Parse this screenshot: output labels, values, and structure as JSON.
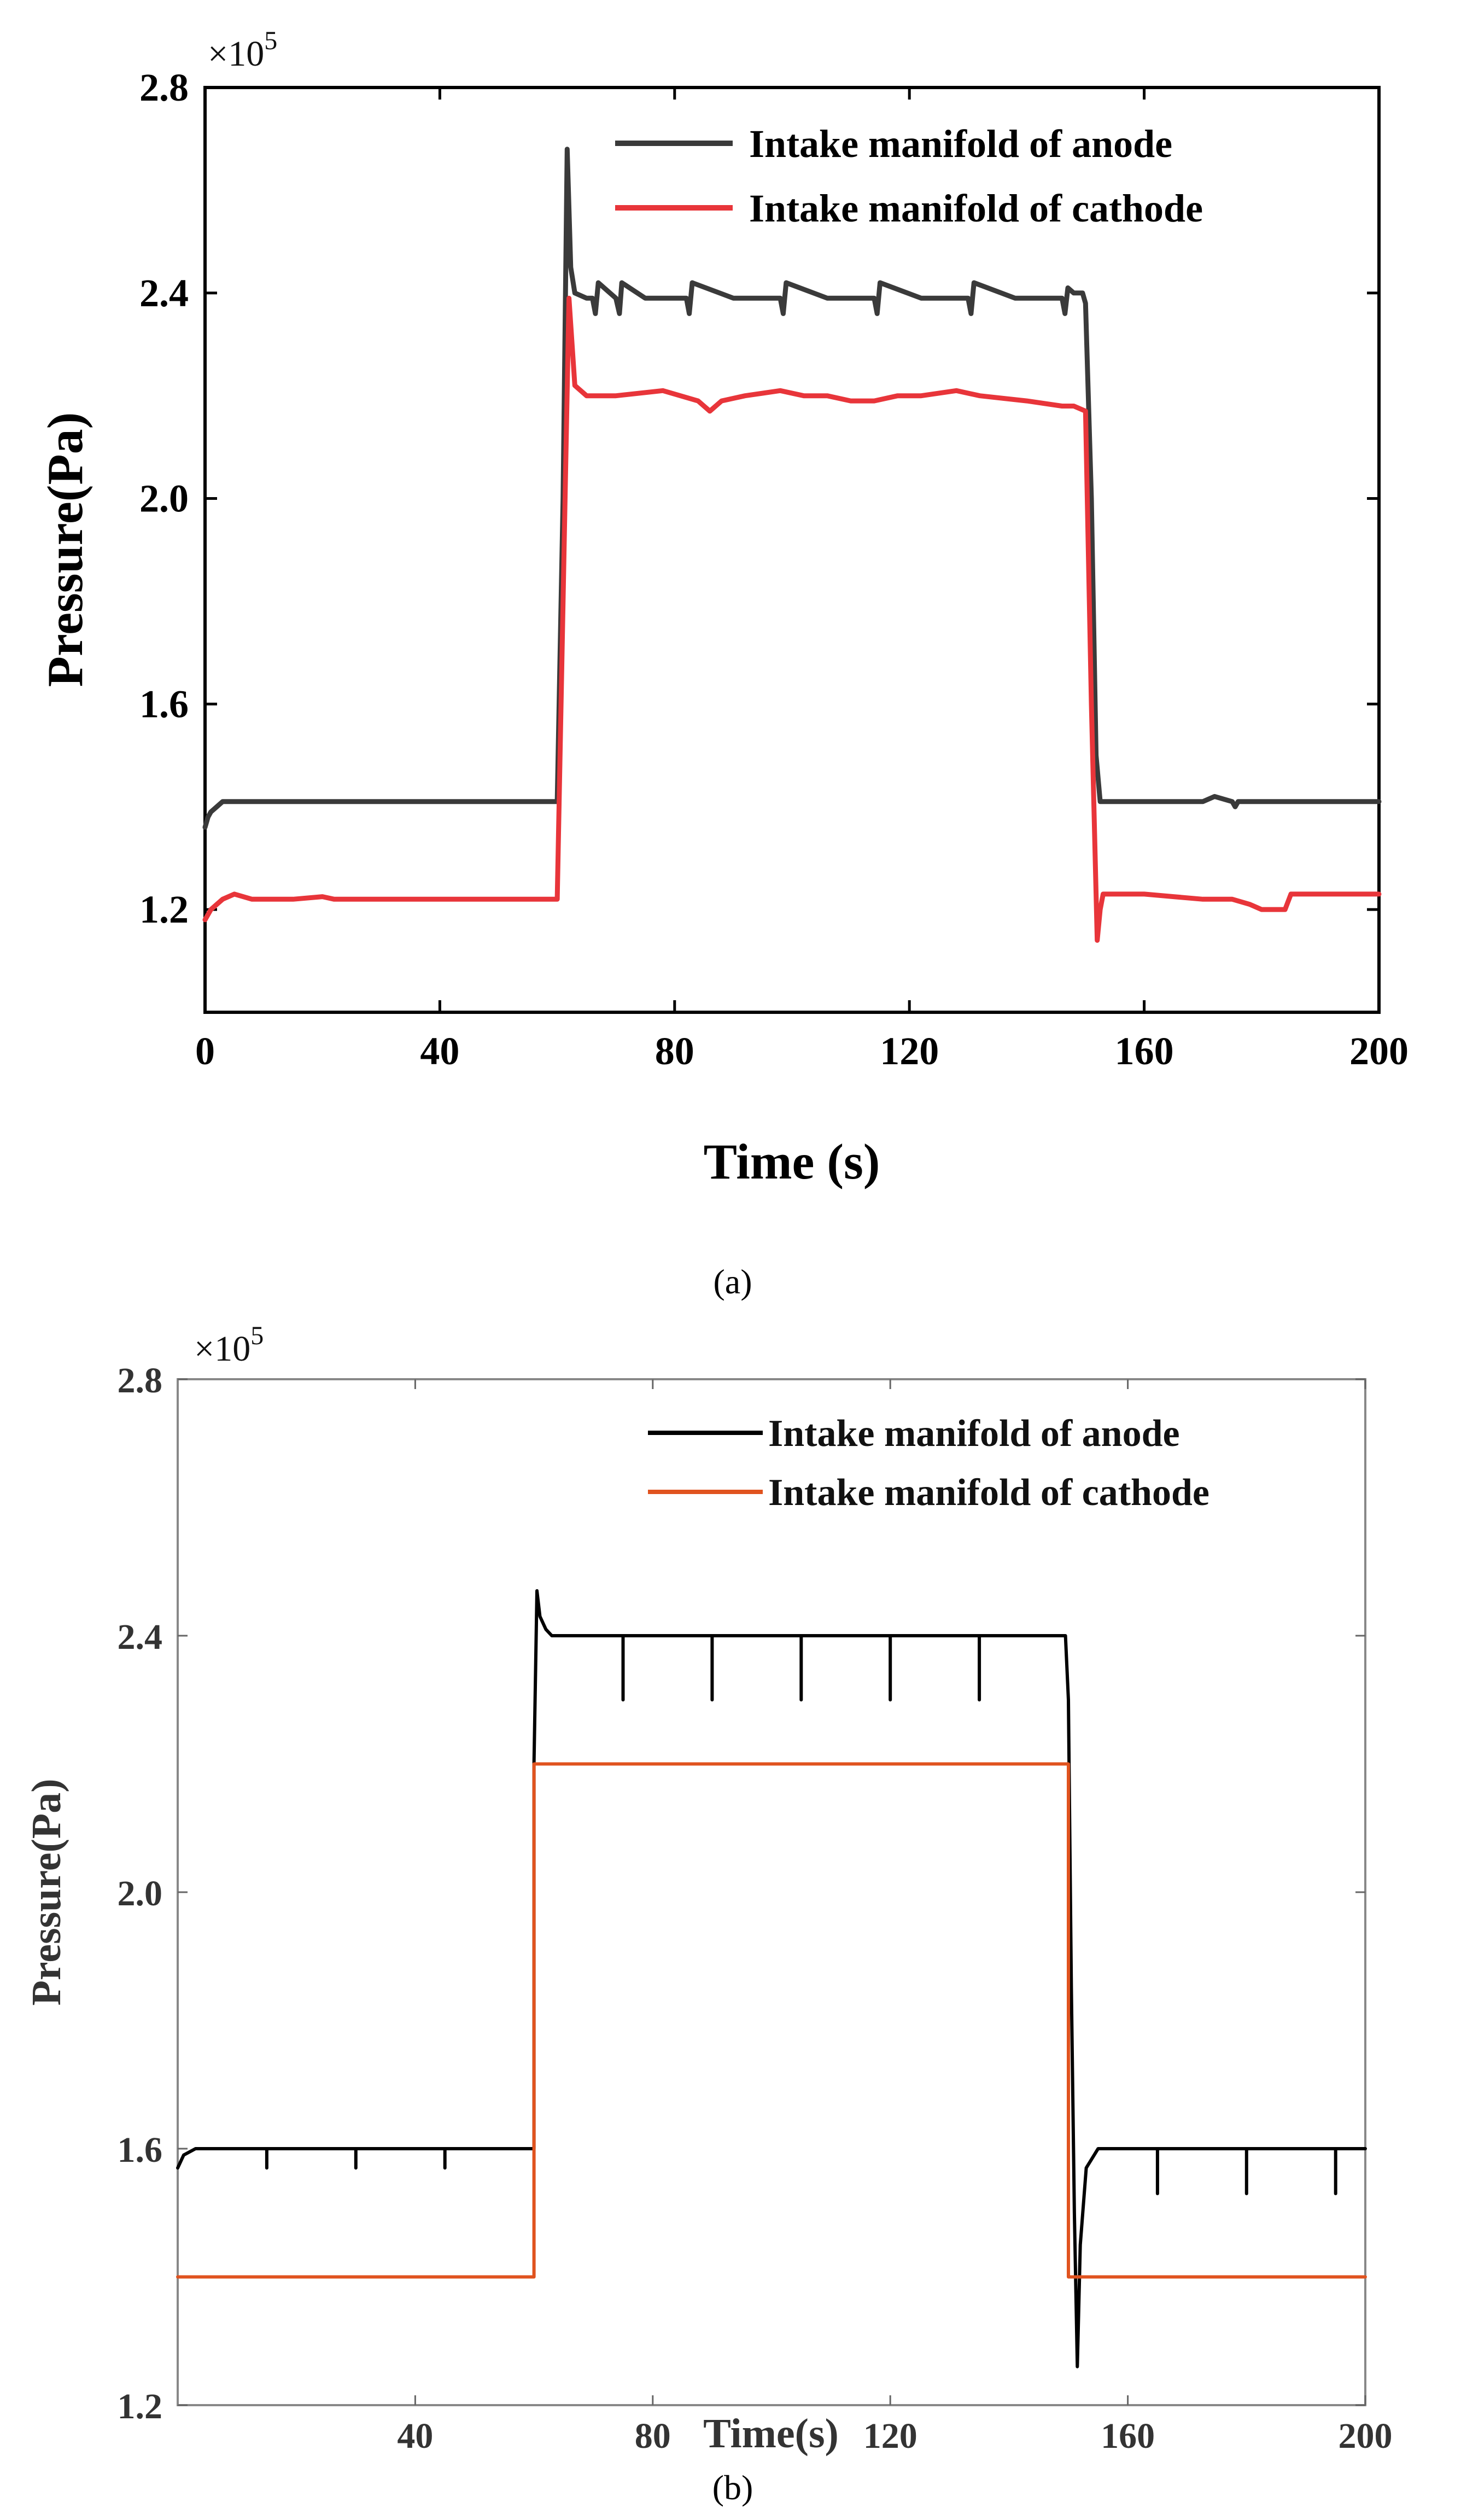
{
  "chart_data": [
    {
      "type": "line",
      "panel": "a",
      "caption": "(a)",
      "xlabel": "Time (s)",
      "ylabel": "Pressure(Pa)",
      "y_multiplier": "×10",
      "y_multiplier_exp": "5",
      "xlim": [
        0,
        200
      ],
      "ylim": [
        1.0,
        2.8
      ],
      "xticks": [
        0,
        40,
        80,
        120,
        160,
        200
      ],
      "yticks": [
        1.2,
        1.6,
        2.0,
        2.4,
        2.8
      ],
      "xtick_labels": [
        "0",
        "40",
        "80",
        "120",
        "160",
        "200"
      ],
      "ytick_labels": [
        "1.2",
        "1.6",
        "2.0",
        "2.4",
        "2.8"
      ],
      "legend_position": "top-right",
      "series": [
        {
          "name": "Intake manifold of anode",
          "color": "#3a3a3a",
          "x": [
            0,
            0.5,
            1,
            2,
            3,
            10,
            60,
            61,
            61.7,
            62.3,
            63,
            65,
            66,
            66.5,
            67,
            70,
            70.6,
            71,
            75,
            82,
            82.5,
            83,
            90,
            98,
            98.5,
            99,
            106,
            114,
            114.5,
            115,
            122,
            130,
            130.5,
            131,
            138,
            146,
            146.5,
            147,
            148,
            149.5,
            150,
            151,
            151.8,
            152.5,
            160,
            170,
            172,
            175,
            175.5,
            176,
            180,
            190,
            200
          ],
          "y": [
            1.36,
            1.38,
            1.39,
            1.4,
            1.41,
            1.41,
            1.41,
            2.0,
            2.68,
            2.45,
            2.4,
            2.39,
            2.39,
            2.36,
            2.42,
            2.39,
            2.36,
            2.42,
            2.39,
            2.39,
            2.36,
            2.42,
            2.39,
            2.39,
            2.36,
            2.42,
            2.39,
            2.39,
            2.36,
            2.42,
            2.39,
            2.39,
            2.36,
            2.42,
            2.39,
            2.39,
            2.36,
            2.41,
            2.4,
            2.4,
            2.38,
            2.0,
            1.5,
            1.41,
            1.41,
            1.41,
            1.42,
            1.41,
            1.4,
            1.41,
            1.41,
            1.41,
            1.41
          ]
        },
        {
          "name": "Intake manifold of cathode",
          "color": "#e8353a",
          "x": [
            0,
            1,
            3,
            5,
            8,
            15,
            20,
            22,
            30,
            60,
            61,
            62,
            63,
            65,
            70,
            78,
            84,
            86,
            88,
            92,
            98,
            102,
            106,
            110,
            114,
            118,
            122,
            128,
            132,
            140,
            146,
            148,
            150,
            151,
            152,
            152.5,
            153,
            160,
            165,
            170,
            175,
            178,
            180,
            184,
            185,
            190,
            200
          ],
          "y": [
            1.18,
            1.2,
            1.22,
            1.23,
            1.22,
            1.22,
            1.225,
            1.22,
            1.22,
            1.22,
            1.8,
            2.39,
            2.22,
            2.2,
            2.2,
            2.21,
            2.19,
            2.17,
            2.19,
            2.2,
            2.21,
            2.2,
            2.2,
            2.19,
            2.19,
            2.2,
            2.2,
            2.21,
            2.2,
            2.19,
            2.18,
            2.18,
            2.17,
            1.6,
            1.14,
            1.2,
            1.23,
            1.23,
            1.225,
            1.22,
            1.22,
            1.21,
            1.2,
            1.2,
            1.23,
            1.23,
            1.23
          ]
        }
      ]
    },
    {
      "type": "line",
      "panel": "b",
      "caption": "(b)",
      "xlabel": "Time(s)",
      "ylabel": "Pressure(Pa)",
      "y_multiplier": "×10",
      "y_multiplier_exp": "5",
      "xlim": [
        0,
        200
      ],
      "ylim": [
        1.2,
        2.8
      ],
      "xticks": [
        40,
        80,
        120,
        160,
        200
      ],
      "yticks": [
        1.2,
        1.6,
        2.0,
        2.4,
        2.8
      ],
      "xtick_labels": [
        "40",
        "80",
        "120",
        "160",
        "200"
      ],
      "ytick_labels": [
        "1.2",
        "1.6",
        "2.0",
        "2.4",
        "2.8"
      ],
      "legend_position": "top-right",
      "series": [
        {
          "name": "Intake manifold of anode",
          "color": "#000000",
          "x": [
            0,
            1,
            3,
            5,
            15,
            15,
            15,
            30,
            30,
            30,
            45,
            45,
            45,
            60,
            60,
            60.5,
            61,
            62,
            63,
            65,
            75,
            75,
            75,
            90,
            90,
            90,
            105,
            105,
            105,
            120,
            120,
            120,
            135,
            135,
            135,
            148,
            149.5,
            150,
            150.5,
            151,
            151.5,
            152,
            153,
            155,
            160,
            165,
            165,
            165,
            180,
            180,
            180,
            195,
            195,
            195,
            200
          ],
          "y": [
            1.57,
            1.59,
            1.6,
            1.6,
            1.6,
            1.57,
            1.6,
            1.6,
            1.57,
            1.6,
            1.6,
            1.57,
            1.6,
            1.6,
            2.2,
            2.47,
            2.43,
            2.41,
            2.4,
            2.4,
            2.4,
            2.3,
            2.4,
            2.4,
            2.3,
            2.4,
            2.4,
            2.3,
            2.4,
            2.4,
            2.3,
            2.4,
            2.4,
            2.3,
            2.4,
            2.4,
            2.4,
            2.3,
            1.85,
            1.5,
            1.26,
            1.45,
            1.57,
            1.6,
            1.6,
            1.6,
            1.53,
            1.6,
            1.6,
            1.53,
            1.6,
            1.6,
            1.53,
            1.6,
            1.6
          ]
        },
        {
          "name": "Intake manifold of cathode",
          "color": "#e0531f",
          "x": [
            0,
            60,
            60,
            150,
            150,
            200
          ],
          "y": [
            1.4,
            1.4,
            2.2,
            2.2,
            1.4,
            1.4
          ]
        }
      ]
    }
  ]
}
